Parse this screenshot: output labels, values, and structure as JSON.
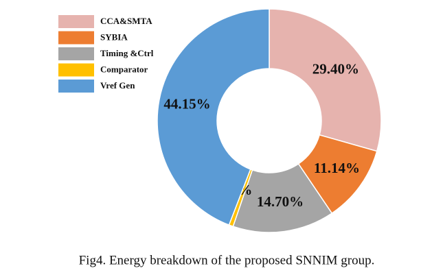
{
  "chart_data": {
    "type": "donut",
    "categories": [
      "CCA&SMTA",
      "SYBIA",
      "Timing &Ctrl",
      "Comparator",
      "Vref Gen"
    ],
    "values": [
      29.4,
      11.14,
      14.7,
      0.61,
      44.15
    ],
    "value_labels": [
      "29.40%",
      "11.14%",
      "14.70%",
      "0.61%",
      "44.15%"
    ],
    "colors": [
      "#e6b3ae",
      "#ed7d31",
      "#a5a5a5",
      "#ffc000",
      "#5b9bd5"
    ],
    "legend": "upper left",
    "caption": "Fig4. Energy breakdown of the proposed SNNIM group."
  }
}
